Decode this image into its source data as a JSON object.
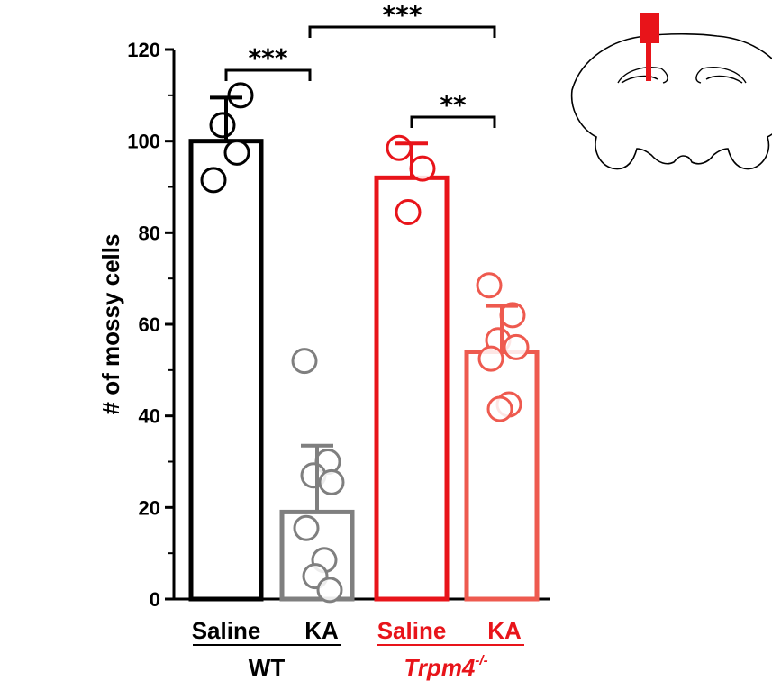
{
  "chart_data": {
    "type": "bar",
    "title": "",
    "xlabel": "",
    "ylabel": "# of mossy cells",
    "ylim": [
      0,
      120
    ],
    "yticks": [
      0,
      20,
      40,
      60,
      80,
      100,
      120
    ],
    "grid": false,
    "categories": [
      "Saline",
      "KA",
      "Saline",
      "KA"
    ],
    "groups": [
      {
        "label": "WT",
        "color": "#000000",
        "categories": [
          0,
          1
        ]
      },
      {
        "label": "Trpm4",
        "superscript": "-/-",
        "color": "#e8141a",
        "categories": [
          2,
          3
        ]
      }
    ],
    "series": [
      {
        "category": "Saline",
        "group": "WT",
        "color": "#000000",
        "mean": 100,
        "error": 9.5,
        "points": [
          91.5,
          97.5,
          103.5,
          110
        ]
      },
      {
        "category": "KA",
        "group": "WT",
        "color": "#7f7f7f",
        "mean": 19,
        "error": 14.5,
        "points": [
          52,
          30,
          27,
          25.5,
          15.5,
          8.5,
          5,
          2
        ]
      },
      {
        "category": "Saline",
        "group": "Trpm4-/-",
        "color": "#e8141a",
        "mean": 92,
        "error": 7.5,
        "points": [
          98.5,
          94,
          84.5
        ]
      },
      {
        "category": "KA",
        "group": "Trpm4-/-",
        "color": "#ee5a4f",
        "mean": 54,
        "error": 10,
        "points": [
          68.5,
          62,
          56.5,
          55,
          52.5,
          42.5,
          41.5
        ]
      }
    ],
    "significance": [
      {
        "from": 0,
        "to": 1,
        "label": "***"
      },
      {
        "from": 1,
        "to": 3,
        "label": "***"
      },
      {
        "from": 2,
        "to": 3,
        "label": "**"
      }
    ]
  },
  "inset": {
    "name": "coronal brain section with probe",
    "probe_color": "#e8141a"
  }
}
